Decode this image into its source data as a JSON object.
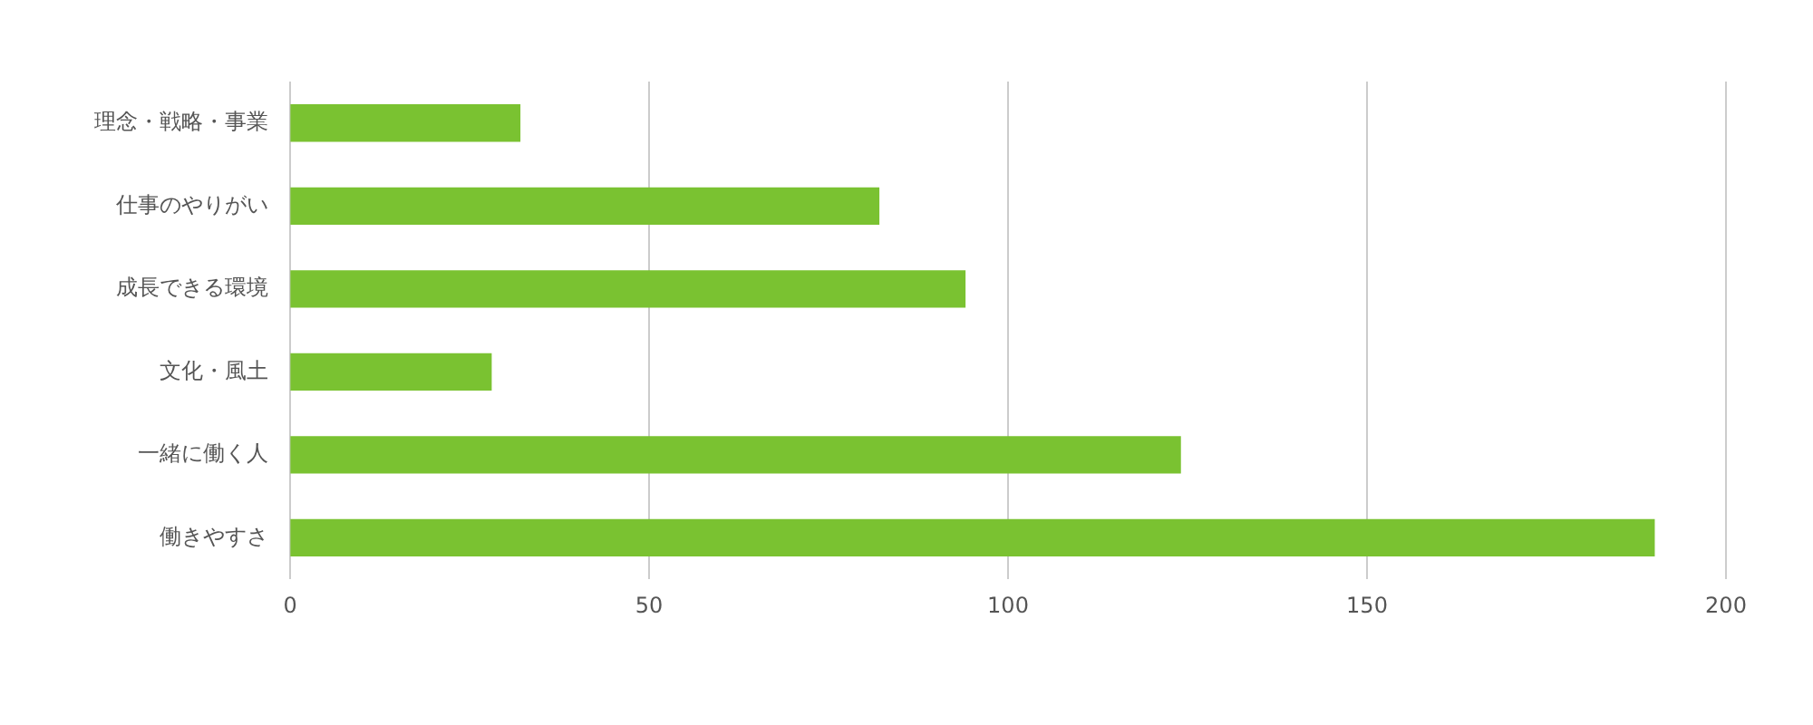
{
  "chart_data": {
    "type": "bar",
    "orientation": "horizontal",
    "categories": [
      "理念・戦略・事業",
      "仕事のやりがい",
      "成長できる環境",
      "文化・風土",
      "一緒に働く人",
      "働きやすさ"
    ],
    "values": [
      32,
      82,
      94,
      28,
      124,
      190
    ],
    "color": "#7ac231",
    "xlim": [
      0,
      200
    ],
    "xticks": [
      0,
      50,
      100,
      150,
      200
    ],
    "grid": "x",
    "legend": false
  }
}
